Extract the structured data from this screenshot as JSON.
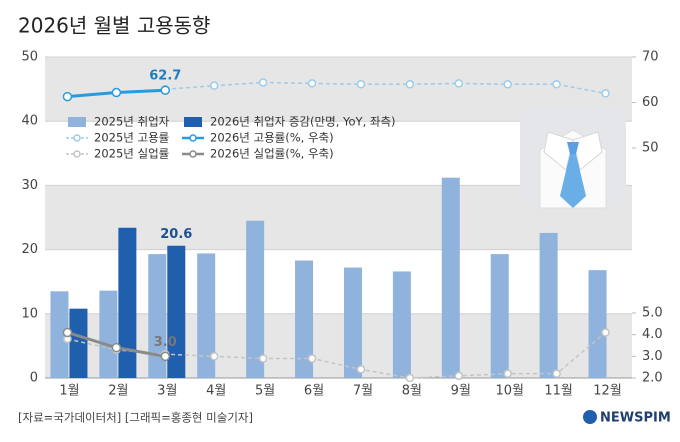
{
  "chart_data": {
    "type": "bar",
    "title": "2026년 월별 고용동향",
    "source": "[자료=국가데이터처] [그래픽=홍종현 미술기자]",
    "logo": "NEWSPIM",
    "categories": [
      "1월",
      "2월",
      "3월",
      "4월",
      "5월",
      "6월",
      "7월",
      "8월",
      "9월",
      "10월",
      "11월",
      "12월"
    ],
    "ylim": [
      0,
      50
    ],
    "yticks": [
      0,
      10,
      20,
      30,
      40,
      50
    ],
    "y2lim": [
      50,
      70
    ],
    "y2ticks": [
      50,
      60,
      70
    ],
    "y3lim": [
      2,
      5
    ],
    "y3ticks": [
      {
        "value": 2,
        "label": "2.0"
      },
      {
        "value": 3,
        "label": "3.0"
      },
      {
        "value": 4,
        "label": "4.0"
      },
      {
        "value": 5,
        "label": "5.0"
      }
    ],
    "grid": true,
    "series": [
      {
        "name": "2025년 취업자",
        "type": "bar",
        "color": "#8fb3dc",
        "values": [
          13.5,
          13.6,
          19.3,
          19.4,
          24.5,
          18.3,
          17.2,
          16.6,
          31.2,
          19.3,
          22.6,
          16.8
        ]
      },
      {
        "name": "2026년 취업자 증감(만명, YoY, 좌측)",
        "type": "bar",
        "color": "#1f5fae",
        "values": [
          10.8,
          23.4,
          20.6,
          null,
          null,
          null,
          null,
          null,
          null,
          null,
          null,
          null
        ],
        "value_labels": [
          null,
          null,
          "20.6",
          null,
          null,
          null,
          null,
          null,
          null,
          null,
          null,
          null
        ]
      },
      {
        "name": "2025년 고용률",
        "type": "line",
        "axis": "y2",
        "dash": true,
        "color": "#9ccbec",
        "values": [
          61.3,
          62.2,
          62.9,
          63.7,
          64.4,
          64.2,
          64.0,
          64.0,
          64.2,
          64.0,
          64.0,
          62.0
        ]
      },
      {
        "name": "2026년 고용률(%, 우축)",
        "type": "line",
        "axis": "y2",
        "dash": false,
        "color": "#2a9ae0",
        "values": [
          61.3,
          62.2,
          62.7,
          null,
          null,
          null,
          null,
          null,
          null,
          null,
          null,
          null
        ],
        "value_labels": [
          null,
          null,
          "62.7",
          null,
          null,
          null,
          null,
          null,
          null,
          null,
          null,
          null
        ]
      },
      {
        "name": "2025년 실업률",
        "type": "line",
        "axis": "y3",
        "dash": true,
        "color": "#c4c4c4",
        "values": [
          3.8,
          3.3,
          3.1,
          3.0,
          2.9,
          2.9,
          2.4,
          2.0,
          2.1,
          2.2,
          2.2,
          4.1
        ]
      },
      {
        "name": "2026년 실업률(%, 우축)",
        "type": "line",
        "axis": "y3",
        "dash": false,
        "color": "#8a8a8a",
        "values": [
          4.1,
          3.4,
          3.0,
          null,
          null,
          null,
          null,
          null,
          null,
          null,
          null,
          null
        ],
        "value_labels": [
          null,
          null,
          "3.0",
          null,
          null,
          null,
          null,
          null,
          null,
          null,
          null,
          null
        ]
      }
    ]
  }
}
